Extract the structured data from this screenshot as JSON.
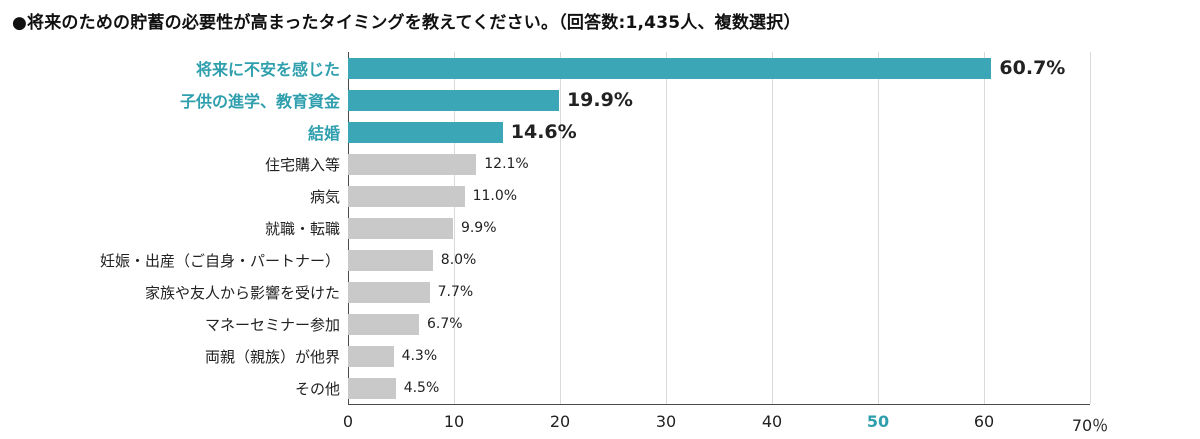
{
  "title": "●将来のための貯蓄の必要性が高まったタイミングを教えてください。（回答数:1,435人、複数選択）",
  "colors": {
    "teal": "#3aa6b6",
    "teal_text": "#2f9fae",
    "gray_bar": "#c9c9c9",
    "grid": "#d9d9d9",
    "axis": "#4a4a4a",
    "text": "#222222"
  },
  "chart_data": {
    "type": "bar",
    "orientation": "horizontal",
    "title": "将来のための貯蓄の必要性が高まったタイミング",
    "xlim": [
      0,
      70
    ],
    "ticks": [
      0,
      10,
      20,
      30,
      40,
      50,
      60,
      70
    ],
    "tick_suffix_last": "％",
    "highlight_tick": 50,
    "grid": true,
    "highlighted_count": 3,
    "categories": [
      "将来に不安を感じた",
      "子供の進学、教育資金",
      "結婚",
      "住宅購入等",
      "病気",
      "就職・転職",
      "妊娠・出産（ご自身・パートナー）",
      "家族や友人から影響を受けた",
      "マネーセミナー参加",
      "両親（親族）が他界",
      "その他"
    ],
    "values": [
      60.7,
      19.9,
      14.6,
      12.1,
      11.0,
      9.9,
      8.0,
      7.7,
      6.7,
      4.3,
      4.5
    ],
    "value_labels": [
      "60.7%",
      "19.9%",
      "14.6%",
      "12.1%",
      "11.0%",
      "9.9%",
      "8.0%",
      "7.7%",
      "6.7%",
      "4.3%",
      "4.5%"
    ]
  }
}
